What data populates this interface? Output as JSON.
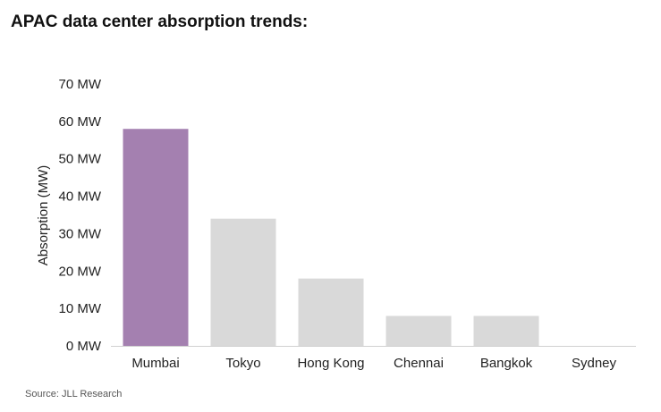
{
  "title": "APAC data center absorption trends:",
  "source": "Source: JLL Research",
  "colors": {
    "highlight": "#a480b0",
    "default": "#d9d9d9",
    "axis": "#d0d0d0"
  },
  "chart_data": {
    "type": "bar",
    "title": "APAC data center absorption trends:",
    "xlabel": "",
    "ylabel": "Absorption (MW)",
    "categories": [
      "Mumbai",
      "Tokyo",
      "Hong Kong",
      "Chennai",
      "Bangkok",
      "Sydney"
    ],
    "values": [
      58,
      34,
      18,
      8,
      8,
      0
    ],
    "highlighted_category": "Mumbai",
    "ylim": [
      0,
      70
    ],
    "yticks": [
      0,
      10,
      20,
      30,
      40,
      50,
      60,
      70
    ],
    "ytick_labels": [
      "0 MW",
      "10 MW",
      "20 MW",
      "30 MW",
      "40 MW",
      "50 MW",
      "60 MW",
      "70 MW"
    ],
    "grid": false,
    "legend": "none"
  }
}
